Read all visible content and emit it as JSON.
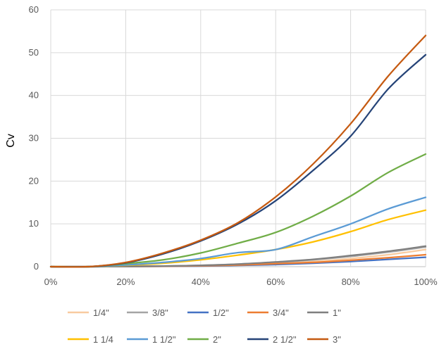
{
  "chart_data": {
    "type": "line",
    "title": "",
    "xlabel": "",
    "ylabel": "Cv",
    "x": [
      0,
      10,
      20,
      30,
      40,
      50,
      60,
      70,
      80,
      90,
      100
    ],
    "x_tick_labels": [
      "0%",
      "20%",
      "40%",
      "60%",
      "80%",
      "100%"
    ],
    "x_tick_values": [
      0,
      20,
      40,
      60,
      80,
      100
    ],
    "xlim": [
      0,
      100
    ],
    "ylim": [
      0,
      60
    ],
    "y_tick_values": [
      0,
      10,
      20,
      30,
      40,
      50,
      60
    ],
    "y_tick_labels": [
      "0",
      "10",
      "20",
      "30",
      "40",
      "50",
      "60"
    ],
    "grid": "vertical-and-horizontal",
    "legend_position": "bottom",
    "series": [
      {
        "name": "1/4\"",
        "color": "#f8cba0",
        "values": [
          0,
          0,
          0.05,
          0.1,
          0.2,
          0.4,
          0.7,
          1.2,
          1.9,
          2.8,
          4.0
        ]
      },
      {
        "name": "3/8\"",
        "color": "#a5a5a5",
        "values": [
          0,
          0,
          0.05,
          0.15,
          0.3,
          0.6,
          1.0,
          1.6,
          2.4,
          3.4,
          4.6
        ]
      },
      {
        "name": "1/2\"",
        "color": "#4472c4",
        "values": [
          0,
          0,
          0.03,
          0.08,
          0.15,
          0.3,
          0.5,
          0.8,
          1.2,
          1.7,
          2.2
        ]
      },
      {
        "name": "3/4\"",
        "color": "#ed7d31",
        "values": [
          0,
          0,
          0.04,
          0.1,
          0.2,
          0.4,
          0.7,
          1.0,
          1.5,
          2.1,
          2.8
        ]
      },
      {
        "name": "1\"",
        "color": "#7f7f7f",
        "values": [
          0,
          0,
          0.05,
          0.15,
          0.3,
          0.6,
          1.1,
          1.7,
          2.6,
          3.6,
          4.8
        ]
      },
      {
        "name": "1 1/4",
        "color": "#ffc000",
        "values": [
          0,
          0,
          0.3,
          0.8,
          1.6,
          2.7,
          4.0,
          5.8,
          8.2,
          11.0,
          13.2
        ]
      },
      {
        "name": "1 1/2\"",
        "color": "#5b9bd5",
        "values": [
          0,
          0,
          0.4,
          1.0,
          1.9,
          3.3,
          4.0,
          7.0,
          10.0,
          13.5,
          16.2
        ]
      },
      {
        "name": "2\"",
        "color": "#70ad47",
        "values": [
          0,
          0,
          0.7,
          1.6,
          3.2,
          5.5,
          8.0,
          11.8,
          16.5,
          22.0,
          26.3
        ]
      },
      {
        "name": "2 1/2\"",
        "color": "#264478",
        "values": [
          0,
          0,
          0.9,
          3.0,
          6.0,
          10.0,
          15.4,
          22.5,
          30.5,
          41.5,
          49.5
        ]
      },
      {
        "name": "3\"",
        "color": "#c55a11",
        "values": [
          0,
          0,
          1.0,
          3.2,
          6.2,
          10.3,
          16.3,
          24.0,
          33.4,
          44.5,
          54.0
        ]
      }
    ]
  }
}
